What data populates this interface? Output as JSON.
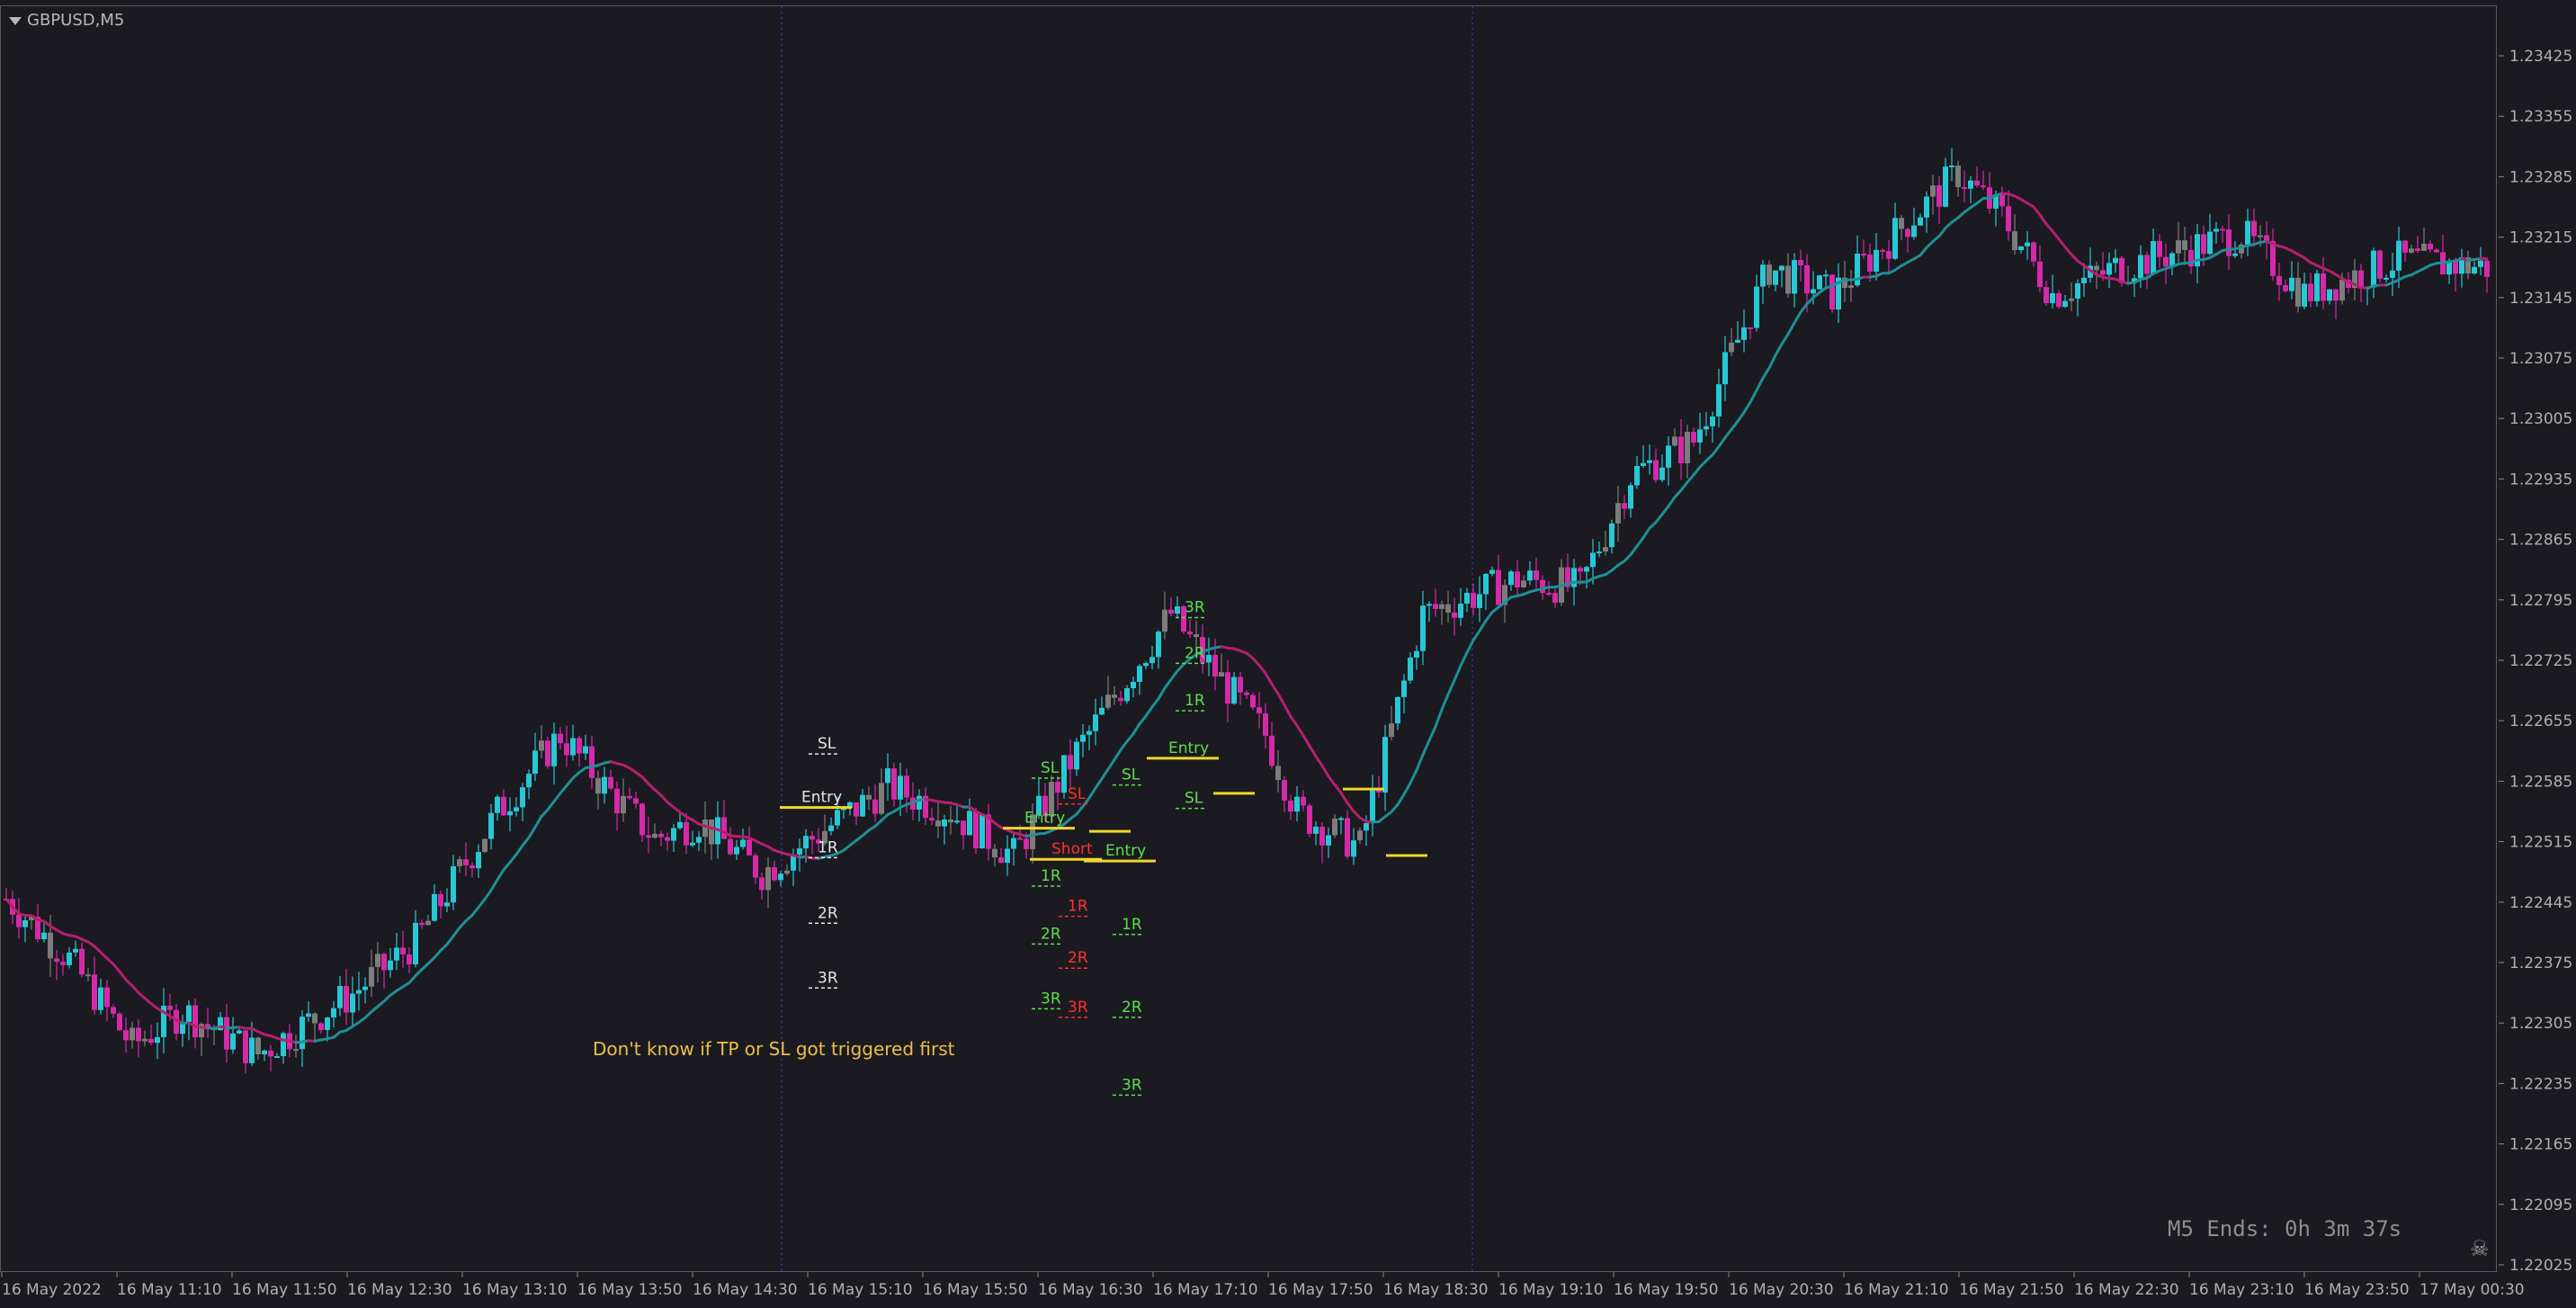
{
  "window": {
    "symbol": "GBPUSD,M5",
    "timer": "M5 Ends: 0h 3m 37s"
  },
  "colors": {
    "background": "#1b1a20",
    "bull": "#27c8d4",
    "bear": "#d42aa8",
    "neutral": "#7c7c7c",
    "ma_up": "#1f8f96",
    "ma_down": "#b5206f",
    "level_yellow": "#f0d72e",
    "label_white": "#e6e6e6",
    "label_green": "#5be04d",
    "label_red": "#ff3030",
    "note_yellow": "#e9c04a"
  },
  "price_axis": {
    "ticks": [
      "1.23425",
      "1.23355",
      "1.23285",
      "1.23215",
      "1.23145",
      "1.23075",
      "1.23005",
      "1.22935",
      "1.22865",
      "1.22795",
      "1.22725",
      "1.22655",
      "1.22585",
      "1.22515",
      "1.22445",
      "1.22375",
      "1.22305",
      "1.22235",
      "1.22165",
      "1.22095",
      "1.22025"
    ],
    "ylim": [
      1.22025,
      1.23425
    ]
  },
  "time_axis": {
    "ticks": [
      "16 May 2022",
      "16 May 11:10",
      "16 May 11:50",
      "16 May 12:30",
      "16 May 13:10",
      "16 May 13:50",
      "16 May 14:30",
      "16 May 15:10",
      "16 May 15:50",
      "16 May 16:30",
      "16 May 17:10",
      "16 May 17:50",
      "16 May 18:30",
      "16 May 19:10",
      "16 May 19:50",
      "16 May 20:30",
      "16 May 21:10",
      "16 May 21:50",
      "16 May 22:30",
      "16 May 23:10",
      "16 May 23:50",
      "17 May 00:30"
    ]
  },
  "annotations": {
    "note": "Don't know if TP or SL got triggered first",
    "trades": [
      {
        "color": "white",
        "labels": [
          {
            "text": "SL",
            "price": 1.22628
          },
          {
            "text": "Entry",
            "price": 1.22566
          },
          {
            "text": "1R",
            "price": 1.22508
          },
          {
            "text": "2R",
            "price": 1.22432
          },
          {
            "text": "3R",
            "price": 1.22357
          }
        ]
      },
      {
        "color": "green",
        "labels": [
          {
            "text": "SL",
            "price": 1.226
          },
          {
            "text": "Entry",
            "price": 1.22542
          },
          {
            "text": "1R",
            "price": 1.22475
          },
          {
            "text": "2R",
            "price": 1.22408
          },
          {
            "text": "3R",
            "price": 1.22333
          }
        ]
      },
      {
        "color": "red",
        "labels": [
          {
            "text": "SL",
            "price": 1.2257
          },
          {
            "text": "Short",
            "price": 1.22506
          },
          {
            "text": "1R",
            "price": 1.2244
          },
          {
            "text": "2R",
            "price": 1.2238
          },
          {
            "text": "3R",
            "price": 1.22323
          }
        ]
      },
      {
        "color": "green",
        "labels": [
          {
            "text": "SL",
            "price": 1.22592
          },
          {
            "text": "Entry",
            "price": 1.22504
          },
          {
            "text": "1R",
            "price": 1.22419
          },
          {
            "text": "2R",
            "price": 1.22323
          },
          {
            "text": "3R",
            "price": 1.22233
          }
        ]
      },
      {
        "color": "green",
        "labels": [
          {
            "text": "3R",
            "price": 1.22786
          },
          {
            "text": "2R",
            "price": 1.22733
          },
          {
            "text": "1R",
            "price": 1.22678
          },
          {
            "text": "Entry",
            "price": 1.22623
          },
          {
            "text": "SL",
            "price": 1.22565
          }
        ]
      }
    ]
  }
}
